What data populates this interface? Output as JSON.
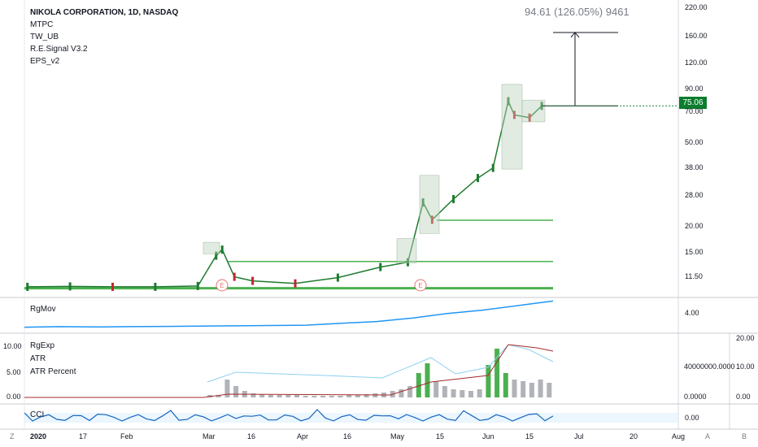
{
  "header": {
    "title": "NIKOLA CORPORATION, 1D, NASDAQ",
    "indicators": [
      "MTPC",
      "TW_UB",
      "R.E.Signal V3.2",
      "EPS_v2"
    ],
    "measure": "94.61 (126.05%) 9461",
    "last_price": "75.06"
  },
  "price_axis": [
    "220.00",
    "160.00",
    "120.00",
    "90.00",
    "70.00",
    "50.00",
    "38.00",
    "28.00",
    "20.00",
    "15.00",
    "11.50"
  ],
  "time_axis": [
    "2020",
    "17",
    "Feb",
    "Mar",
    "16",
    "Apr",
    "16",
    "May",
    "15",
    "Jun",
    "15",
    "Jul",
    "20",
    "Aug"
  ],
  "corner_labels": {
    "left": "Z",
    "right_a": "A",
    "right_b": "B"
  },
  "earnings_marker": "E",
  "panes": {
    "rgmov": {
      "label": "RgMov",
      "axis": "4.00"
    },
    "rgexp": {
      "labels": [
        "RgExp",
        "ATR",
        "ATR Percent"
      ],
      "left_axis": [
        "10.00",
        "5.00",
        "0.00"
      ],
      "mid_axis": [
        "40000000.0000",
        "0.0000"
      ],
      "right_axis": [
        "20.00",
        "10.00",
        "0.00"
      ]
    },
    "cci": {
      "label": "CCI",
      "axis": "0.00"
    }
  },
  "colors": {
    "up": "#1e7b2e",
    "down": "#c2272d",
    "hline": "#4caf50",
    "rgmov": "#2196f3",
    "atr": "#8fd0f0",
    "rgexp": "#a52a2a"
  },
  "chart_data": {
    "type": "line",
    "title": "NIKOLA CORPORATION, 1D, NASDAQ",
    "xlabel": "",
    "ylabel": "",
    "scale": "log",
    "ylim": [
      9.5,
      240
    ],
    "x": [
      "2020-01-02",
      "2020-01-16",
      "2020-01-30",
      "2020-02-13",
      "2020-02-27",
      "2020-03-04",
      "2020-03-06",
      "2020-03-10",
      "2020-03-16",
      "2020-03-30",
      "2020-04-13",
      "2020-04-27",
      "2020-05-06",
      "2020-05-11",
      "2020-05-14",
      "2020-05-21",
      "2020-05-29",
      "2020-06-03",
      "2020-06-08",
      "2020-06-10",
      "2020-06-15",
      "2020-06-19"
    ],
    "series": [
      {
        "values": [
          10.3,
          10.35,
          10.3,
          10.3,
          10.4,
          14.5,
          15.5,
          11.5,
          11.0,
          10.7,
          11.4,
          12.8,
          13.5,
          26.0,
          21.5,
          27.0,
          34.0,
          38.0,
          79.0,
          68.0,
          66.0,
          75.06
        ]
      }
    ],
    "horizontal_levels": [
      10.15,
      13.6,
      21.4
    ],
    "target": 168.0
  }
}
